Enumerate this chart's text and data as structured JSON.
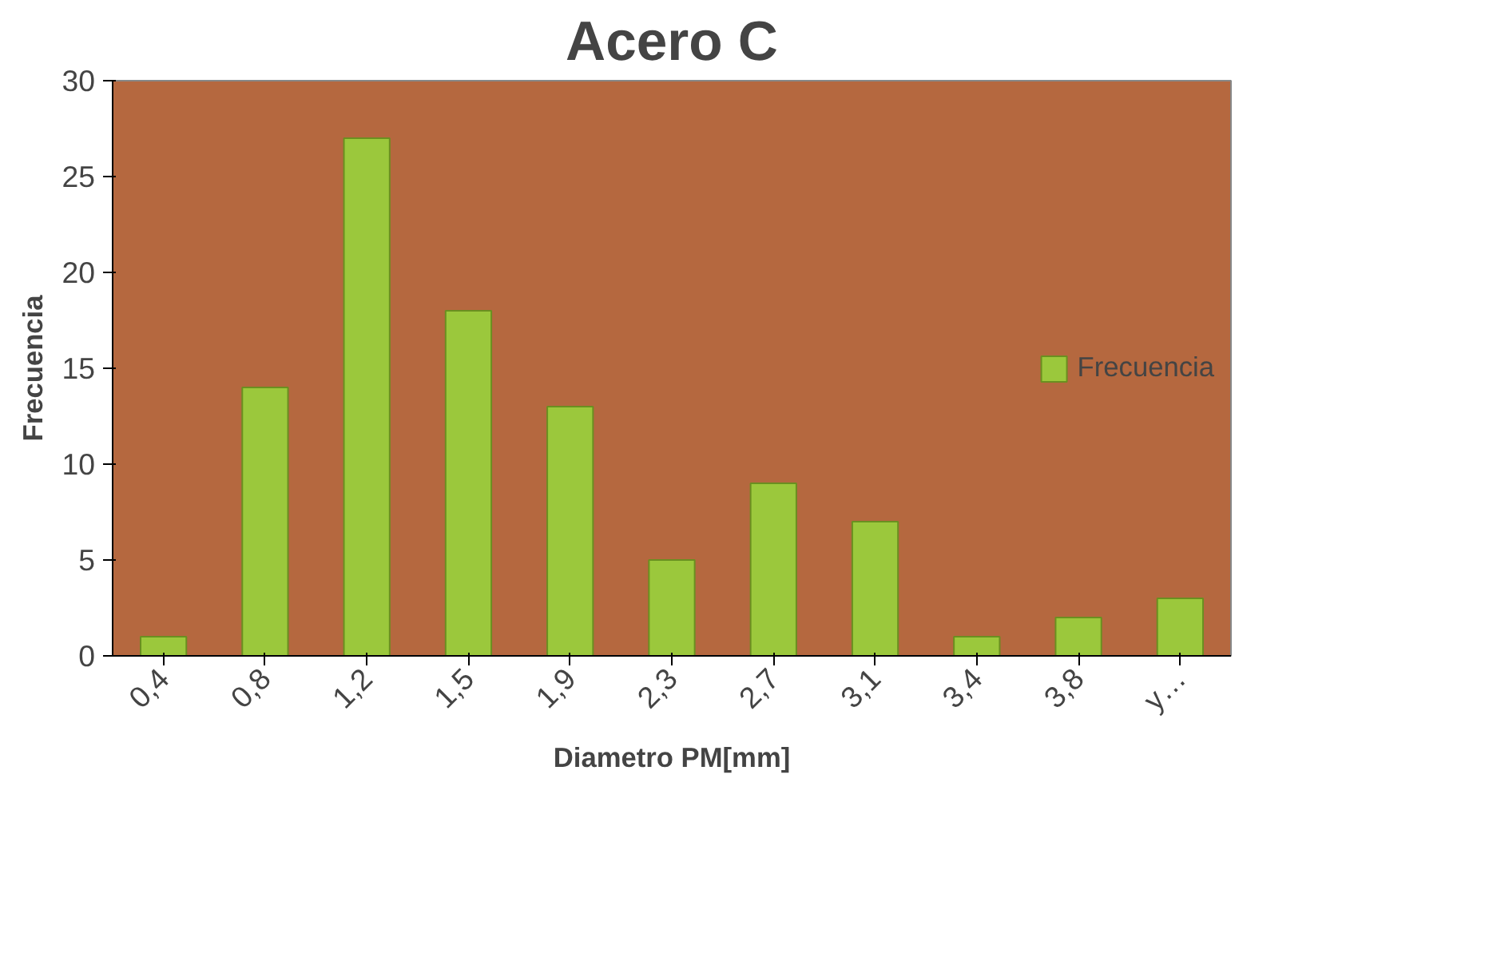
{
  "chart_data": {
    "type": "bar",
    "title": "Acero C",
    "xlabel": "Diametro PM[mm]",
    "ylabel": "Frecuencia",
    "categories": [
      "0,4",
      "0,8",
      "1,2",
      "1,5",
      "1,9",
      "2,3",
      "2,7",
      "3,1",
      "3,4",
      "3,8",
      "y…"
    ],
    "series": [
      {
        "name": "Frecuencia",
        "color": "#9bc83c",
        "values": [
          1,
          14,
          27,
          18,
          13,
          5,
          9,
          7,
          1,
          2,
          3
        ]
      }
    ],
    "ylim": [
      0,
      30
    ],
    "yticks": [
      0,
      5,
      10,
      15,
      20,
      25,
      30
    ],
    "grid": false,
    "legend": "right"
  }
}
